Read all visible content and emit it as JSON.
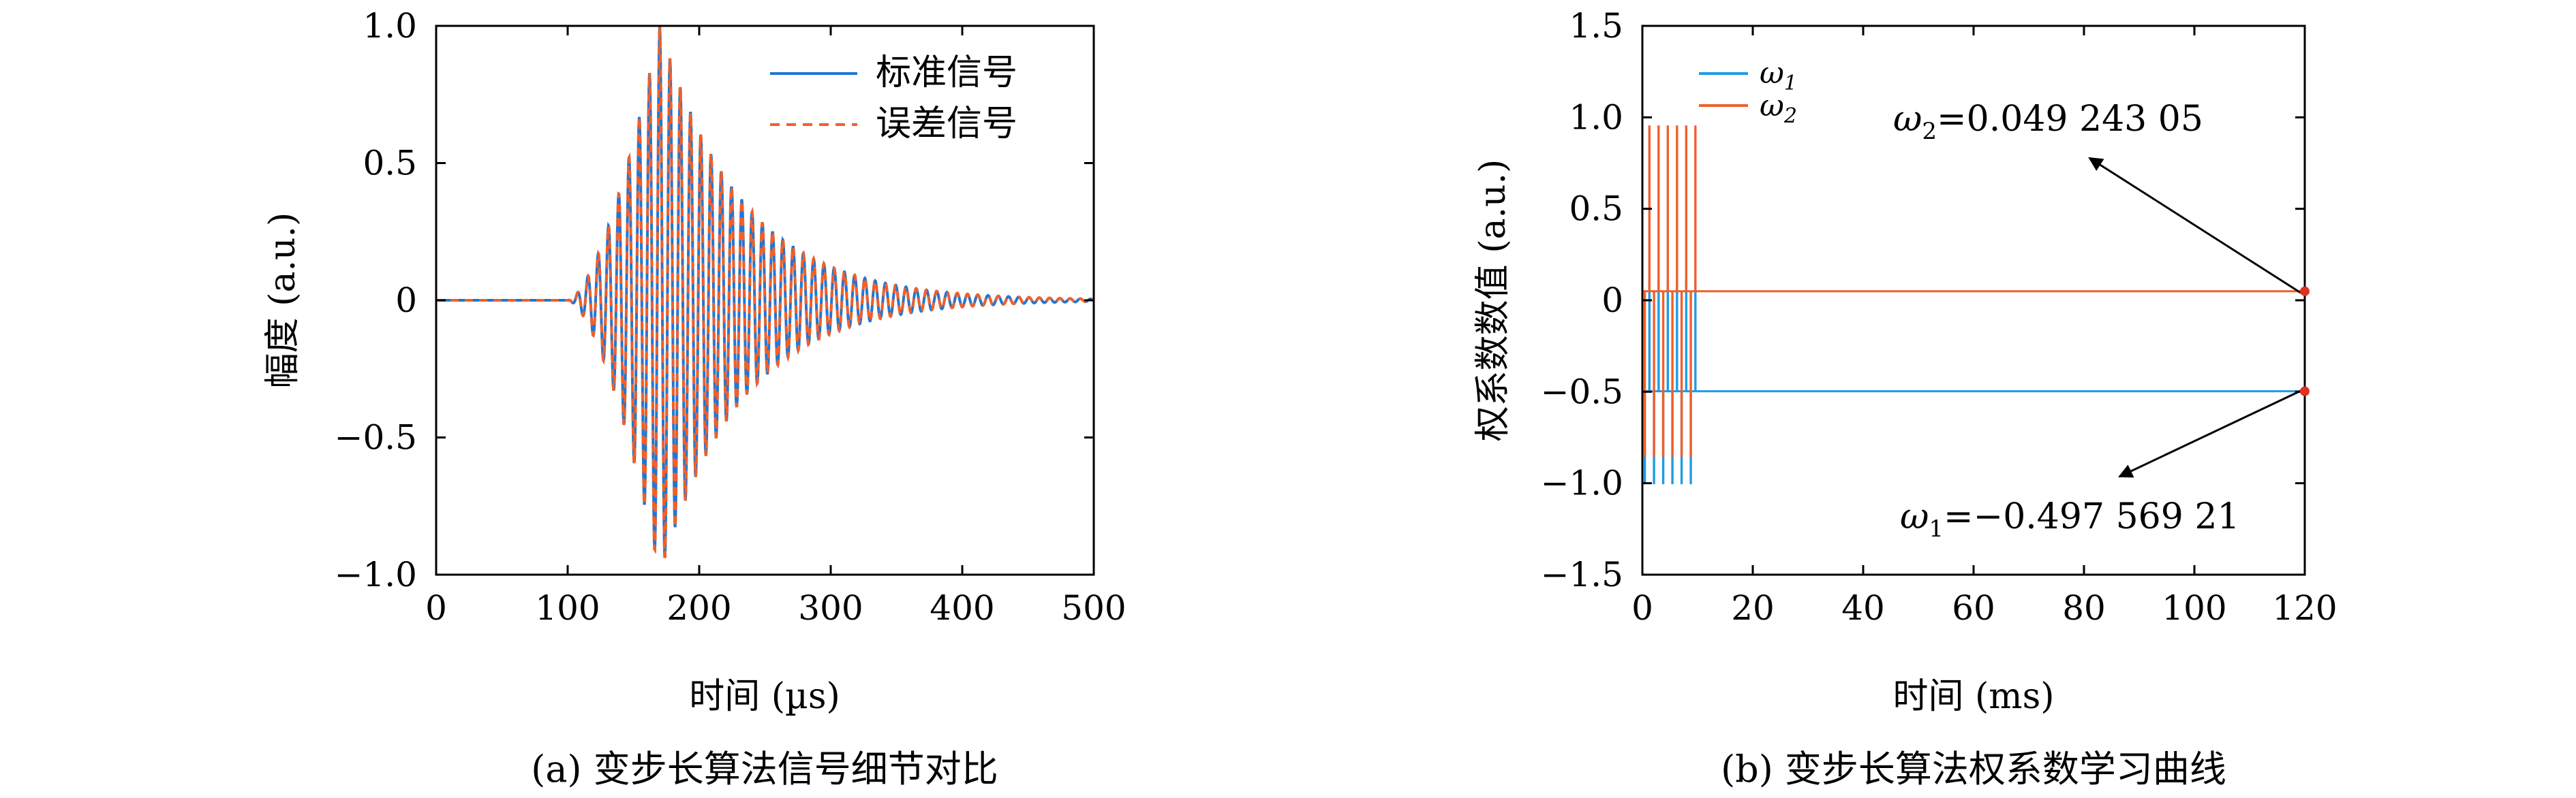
{
  "chart_data": [
    {
      "type": "line",
      "caption": "(a) 变步长算法信号细节对比",
      "xlabel": "时间 (µs)",
      "ylabel": "幅度 (a.u.)",
      "xlim": [
        0,
        500
      ],
      "ylim": [
        -1.0,
        1.0
      ],
      "x_ticks": [
        0,
        100,
        200,
        300,
        400,
        500
      ],
      "x_tick_labels": [
        "0",
        "100",
        "200",
        "300",
        "400",
        "500"
      ],
      "y_ticks": [
        -1.0,
        -0.5,
        0,
        0.5,
        1.0
      ],
      "y_tick_labels": [
        "−1.0",
        "−0.5",
        "0",
        "0.5",
        "1.0"
      ],
      "grid": false,
      "legend_position": "top-right",
      "series": [
        {
          "name": "标准信号",
          "color": "#1f77d4",
          "style": "solid"
        },
        {
          "name": "误差信号",
          "color": "#f0602a",
          "style": "dashed"
        }
      ],
      "signal": {
        "description_values": {
          "onset_us": 100,
          "peak_time_us": 170,
          "peak_amplitude": 1.0,
          "period_us": 7.8,
          "decay_end_us": 420
        }
      }
    },
    {
      "type": "line",
      "caption": "(b) 变步长算法权系数学习曲线",
      "xlabel": "时间 (ms)",
      "ylabel": "权系数数值 (a.u.)",
      "xlim": [
        0,
        120
      ],
      "ylim": [
        -1.5,
        1.5
      ],
      "x_ticks": [
        0,
        20,
        40,
        60,
        80,
        100,
        120
      ],
      "x_tick_labels": [
        "0",
        "20",
        "40",
        "60",
        "80",
        "100",
        "120"
      ],
      "y_ticks": [
        -1.5,
        -1.0,
        -0.5,
        0,
        0.5,
        1.0,
        1.5
      ],
      "y_tick_labels": [
        "−1.5",
        "−1.0",
        "−0.5",
        "0",
        "0.5",
        "1.0",
        "1.5"
      ],
      "grid": false,
      "legend_position": "top-left",
      "series": [
        {
          "name": "ω1",
          "color": "#1e9be6",
          "final_value": -0.49756921,
          "transient_end_ms": 10,
          "transient_spikes": [
            -1.0,
            0.1
          ]
        },
        {
          "name": "ω2",
          "color": "#f0602a",
          "final_value": 0.04924305,
          "transient_end_ms": 10,
          "transient_spikes": [
            -0.85,
            0.95
          ]
        }
      ],
      "annotations": [
        {
          "prefix": "ω",
          "sub": "2",
          "text": "=0.049 243 05",
          "color": "#1a1a8c",
          "target": [
            120,
            0.04924305
          ]
        },
        {
          "prefix": "ω",
          "sub": "1",
          "text": "=−0.497 569 21",
          "color": "#1a1a8c",
          "target": [
            120,
            -0.49756921
          ]
        }
      ],
      "marker_color": "#e03020"
    }
  ]
}
